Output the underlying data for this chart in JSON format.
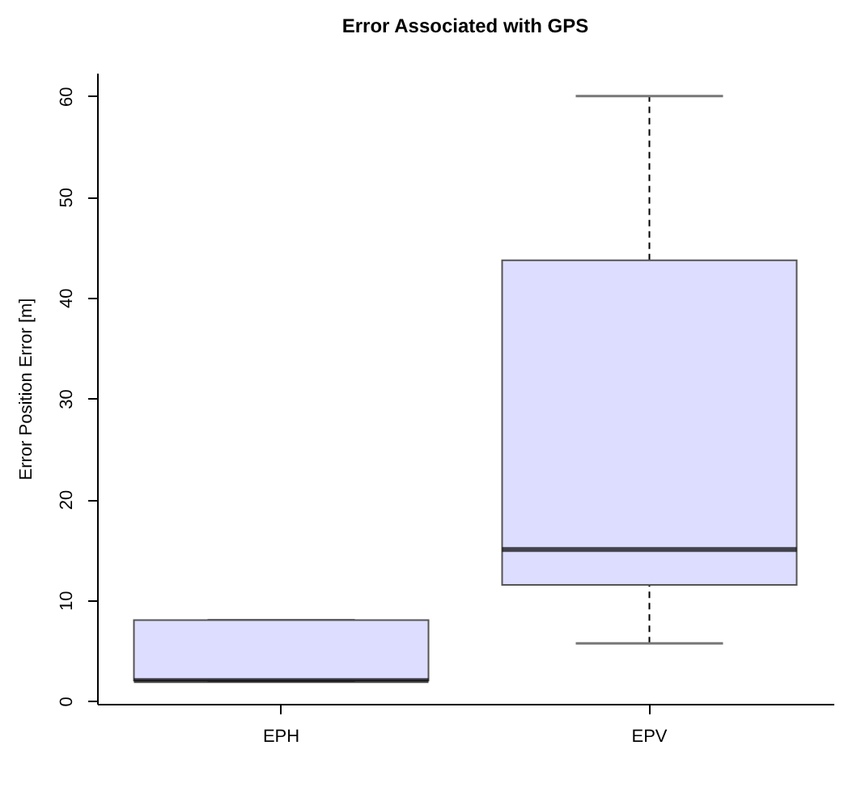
{
  "chart_data": {
    "type": "box",
    "title": "Error Associated with GPS",
    "ylabel": "Error Position Error [m]",
    "categories": [
      "EPH",
      "EPV"
    ],
    "series": [
      {
        "color": "#ddddff",
        "boxes": [
          {
            "low": 2,
            "q1": 2,
            "median": 2,
            "q3": 8,
            "high": 8
          },
          {
            "low": 5.7,
            "q1": 11.5,
            "median": 15,
            "q3": 43.7,
            "high": 60
          }
        ]
      }
    ],
    "ylim": [
      -0.3,
      62.3
    ],
    "yticks": [
      0,
      10,
      20,
      30,
      40,
      50,
      60
    ],
    "grid": false
  }
}
